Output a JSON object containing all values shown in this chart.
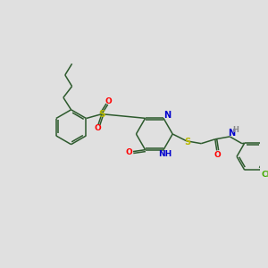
{
  "background_color": "#e0e0e0",
  "bond_color": "#2d5a2d",
  "figsize": [
    3.0,
    3.0
  ],
  "dpi": 100,
  "atom_colors": {
    "O": "#ff0000",
    "N": "#0000cc",
    "S": "#b8b800",
    "Cl": "#44aa00",
    "H": "#888888",
    "C": "#2d5a2d"
  }
}
